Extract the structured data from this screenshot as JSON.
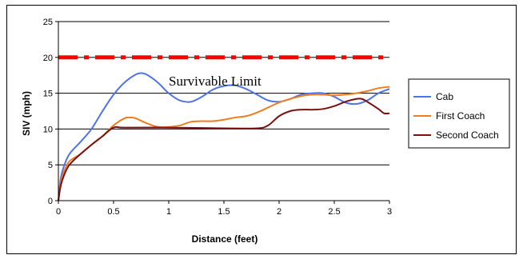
{
  "chart_data": {
    "type": "line",
    "title": "",
    "xlabel": "Distance (feet)",
    "ylabel": "SIV (mph)",
    "xlim": [
      0,
      3
    ],
    "ylim": [
      0,
      25
    ],
    "x_ticks": [
      "0",
      "0.5",
      "1",
      "1.5",
      "2",
      "2.5",
      "3"
    ],
    "y_ticks": [
      "0",
      "5",
      "10",
      "15",
      "20",
      "25"
    ],
    "grid": "horizontal",
    "legend_position": "right",
    "reference_line": {
      "label": "Survivable Limit",
      "y": 20,
      "color": "#ff0000"
    },
    "series": [
      {
        "name": "Cab",
        "color": "#4f73e8",
        "points": [
          [
            0,
            0
          ],
          [
            0.02,
            3
          ],
          [
            0.05,
            4.8
          ],
          [
            0.1,
            6.5
          ],
          [
            0.2,
            8.2
          ],
          [
            0.3,
            10
          ],
          [
            0.4,
            12.5
          ],
          [
            0.5,
            14.8
          ],
          [
            0.6,
            16.5
          ],
          [
            0.7,
            17.6
          ],
          [
            0.75,
            17.8
          ],
          [
            0.8,
            17.6
          ],
          [
            0.9,
            16.5
          ],
          [
            1.0,
            15
          ],
          [
            1.1,
            14
          ],
          [
            1.2,
            13.8
          ],
          [
            1.3,
            14.5
          ],
          [
            1.4,
            15.5
          ],
          [
            1.5,
            16
          ],
          [
            1.6,
            16.1
          ],
          [
            1.7,
            15.6
          ],
          [
            1.8,
            14.8
          ],
          [
            1.9,
            14
          ],
          [
            2.0,
            13.8
          ],
          [
            2.1,
            14.2
          ],
          [
            2.2,
            14.8
          ],
          [
            2.3,
            15
          ],
          [
            2.4,
            15
          ],
          [
            2.5,
            14.5
          ],
          [
            2.6,
            13.7
          ],
          [
            2.7,
            13.5
          ],
          [
            2.8,
            14
          ],
          [
            2.9,
            15
          ],
          [
            3.0,
            15.6
          ]
        ]
      },
      {
        "name": "First Coach",
        "color": "#f07d1e",
        "points": [
          [
            0,
            0
          ],
          [
            0.02,
            2.5
          ],
          [
            0.05,
            4
          ],
          [
            0.1,
            5.5
          ],
          [
            0.2,
            6.5
          ],
          [
            0.3,
            7.8
          ],
          [
            0.4,
            9
          ],
          [
            0.5,
            10.5
          ],
          [
            0.6,
            11.5
          ],
          [
            0.65,
            11.6
          ],
          [
            0.7,
            11.5
          ],
          [
            0.8,
            10.8
          ],
          [
            0.9,
            10.3
          ],
          [
            1.0,
            10.3
          ],
          [
            1.1,
            10.5
          ],
          [
            1.2,
            11
          ],
          [
            1.3,
            11.1
          ],
          [
            1.4,
            11.1
          ],
          [
            1.5,
            11.3
          ],
          [
            1.6,
            11.6
          ],
          [
            1.7,
            11.8
          ],
          [
            1.8,
            12.3
          ],
          [
            1.9,
            13
          ],
          [
            2.0,
            13.7
          ],
          [
            2.1,
            14.2
          ],
          [
            2.2,
            14.6
          ],
          [
            2.3,
            14.8
          ],
          [
            2.4,
            14.8
          ],
          [
            2.5,
            14.7
          ],
          [
            2.6,
            14.8
          ],
          [
            2.7,
            15
          ],
          [
            2.8,
            15.3
          ],
          [
            2.9,
            15.7
          ],
          [
            3.0,
            15.9
          ]
        ]
      },
      {
        "name": "Second Coach",
        "color": "#7b1010",
        "points": [
          [
            0,
            0
          ],
          [
            0.02,
            2
          ],
          [
            0.05,
            3.5
          ],
          [
            0.1,
            5
          ],
          [
            0.2,
            6.5
          ],
          [
            0.3,
            7.8
          ],
          [
            0.4,
            9
          ],
          [
            0.5,
            10.2
          ],
          [
            0.6,
            10.2
          ],
          [
            1.0,
            10.2
          ],
          [
            1.5,
            10.1
          ],
          [
            1.8,
            10.1
          ],
          [
            1.9,
            10.5
          ],
          [
            2.0,
            11.8
          ],
          [
            2.1,
            12.5
          ],
          [
            2.2,
            12.7
          ],
          [
            2.3,
            12.7
          ],
          [
            2.4,
            12.8
          ],
          [
            2.5,
            13.2
          ],
          [
            2.6,
            13.8
          ],
          [
            2.7,
            14.2
          ],
          [
            2.75,
            14.2
          ],
          [
            2.8,
            13.8
          ],
          [
            2.9,
            12.8
          ],
          [
            2.95,
            12.2
          ],
          [
            3.0,
            12.2
          ]
        ]
      }
    ]
  }
}
